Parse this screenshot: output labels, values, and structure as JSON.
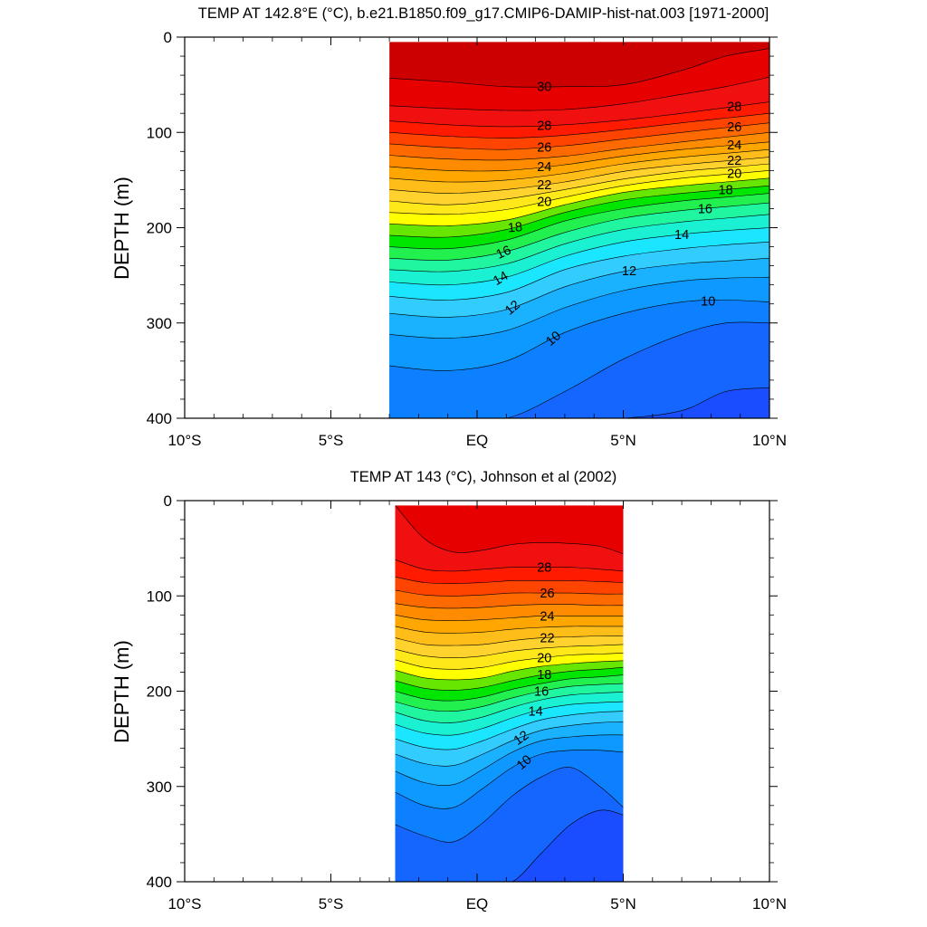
{
  "chart_data": [
    {
      "type": "heatmap",
      "subtype": "filled-contour",
      "title": "TEMP AT 142.8°E (°C), b.e21.B1850.f09_g17.CMIP6-DAMIP-hist-nat.003 [1971-2000]",
      "ylabel": "DEPTH (m)",
      "xlabel": "",
      "xlim": [
        -10,
        10
      ],
      "ylim": [
        400,
        0
      ],
      "x_ticks": [
        -10,
        -5,
        0,
        5,
        10
      ],
      "x_tick_labels": [
        "10°S",
        "5°S",
        "EQ",
        "5°N",
        "10°N"
      ],
      "y_ticks": [
        0,
        100,
        200,
        300,
        400
      ],
      "y_tick_labels": [
        "0",
        "100",
        "200",
        "300",
        "400"
      ],
      "data_extent": {
        "lat": [
          -3.0,
          10.0
        ],
        "depth": [
          5,
          400
        ]
      },
      "contour_interval": 1,
      "contour_labels": [
        "30",
        "28",
        "26",
        "24",
        "22",
        "20",
        "18",
        "16",
        "14",
        "12",
        "10",
        "28",
        "26",
        "24",
        "22",
        "20",
        "18",
        "16",
        "14",
        "12",
        "10"
      ],
      "isotherm_depths": {
        "lat": [
          -3,
          -1,
          1,
          3,
          5,
          7,
          8.5,
          10
        ],
        "series": [
          {
            "t": 30,
            "depth": [
              43,
              47,
              52,
              52,
              50,
              35,
              20,
              12
            ]
          },
          {
            "t": 29,
            "depth": [
              72,
              75,
              77,
              76,
              70,
              60,
              52,
              42
            ]
          },
          {
            "t": 28,
            "depth": [
              88,
              92,
              94,
              92,
              87,
              80,
              74,
              68
            ]
          },
          {
            "t": 27,
            "depth": [
              100,
              104,
              106,
              103,
              97,
              90,
              85,
              80
            ]
          },
          {
            "t": 26,
            "depth": [
              112,
              116,
              118,
              114,
              107,
              100,
              95,
              90
            ]
          },
          {
            "t": 25,
            "depth": [
              124,
              128,
              129,
              125,
              117,
              110,
              105,
              100
            ]
          },
          {
            "t": 24,
            "depth": [
              136,
              140,
              140,
              134,
              125,
              118,
              114,
              110
            ]
          },
          {
            "t": 23,
            "depth": [
              148,
              152,
              150,
              143,
              133,
              126,
              122,
              118
            ]
          },
          {
            "t": 22,
            "depth": [
              160,
              164,
              160,
              152,
              141,
              134,
              130,
              126
            ]
          },
          {
            "t": 21,
            "depth": [
              172,
              176,
              170,
              160,
              149,
              141,
              137,
              133
            ]
          },
          {
            "t": 20,
            "depth": [
              184,
              186,
              181,
              168,
              156,
              148,
              144,
              140
            ]
          },
          {
            "t": 19,
            "depth": [
              196,
              198,
              192,
              176,
              163,
              156,
              152,
              148
            ]
          },
          {
            "t": 18,
            "depth": [
              208,
              210,
              202,
              184,
              171,
              164,
              160,
              156
            ]
          },
          {
            "t": 17,
            "depth": [
              220,
              222,
              213,
              193,
              180,
              172,
              168,
              164
            ]
          },
          {
            "t": 16,
            "depth": [
              232,
              234,
              225,
              205,
              190,
              182,
              178,
              174
            ]
          },
          {
            "t": 15,
            "depth": [
              244,
              246,
              238,
              217,
              202,
              194,
              190,
              186
            ]
          },
          {
            "t": 14,
            "depth": [
              257,
              260,
              252,
              230,
              215,
              207,
              203,
              200
            ]
          },
          {
            "t": 13,
            "depth": [
              272,
              276,
              268,
              244,
              230,
              222,
              218,
              215
            ]
          },
          {
            "t": 12,
            "depth": [
              290,
              294,
              286,
              262,
              246,
              238,
              235,
              232
            ]
          },
          {
            "t": 11,
            "depth": [
              312,
              316,
              308,
              284,
              266,
              256,
              253,
              252
            ]
          },
          {
            "t": 10,
            "depth": [
              345,
              350,
              340,
              310,
              290,
              278,
              276,
              278
            ]
          },
          {
            "t": 9,
            "depth": [
              410,
              410,
              405,
              372,
              338,
              312,
              300,
              300
            ]
          },
          {
            "t": 8,
            "depth": [
              410,
              410,
              410,
              410,
              408,
              392,
              372,
              368
            ]
          }
        ]
      }
    },
    {
      "type": "heatmap",
      "subtype": "filled-contour",
      "title": "TEMP AT 143 (°C), Johnson et al (2002)",
      "ylabel": "DEPTH (m)",
      "xlabel": "",
      "xlim": [
        -10,
        10
      ],
      "ylim": [
        400,
        0
      ],
      "x_ticks": [
        -10,
        -5,
        0,
        5,
        10
      ],
      "x_tick_labels": [
        "10°S",
        "5°S",
        "EQ",
        "5°N",
        "10°N"
      ],
      "y_ticks": [
        0,
        100,
        200,
        300,
        400
      ],
      "y_tick_labels": [
        "0",
        "100",
        "200",
        "300",
        "400"
      ],
      "data_extent": {
        "lat": [
          -2.8,
          5.0
        ],
        "depth": [
          5,
          400
        ]
      },
      "contour_interval": 1,
      "contour_labels": [
        "28",
        "26",
        "24",
        "22",
        "20",
        "18",
        "16",
        "14",
        "12",
        "10"
      ],
      "isotherm_depths": {
        "lat": [
          -2.8,
          -1.8,
          -0.8,
          0.2,
          1.2,
          2.2,
          3.2,
          4.2,
          5.0
        ],
        "series": [
          {
            "t": 29,
            "depth": [
              0,
              40,
              54,
              52,
              46,
              44,
              45,
              48,
              56
            ]
          },
          {
            "t": 28,
            "depth": [
              62,
              72,
              74,
              72,
              70,
              70,
              70,
              72,
              74
            ]
          },
          {
            "t": 27,
            "depth": [
              80,
              86,
              87,
              86,
              84,
              84,
              84,
              85,
              86
            ]
          },
          {
            "t": 26,
            "depth": [
              94,
              99,
              100,
              99,
              97,
              97,
              97,
              98,
              98
            ]
          },
          {
            "t": 25,
            "depth": [
              108,
              112,
              113,
              112,
              110,
              109,
              109,
              110,
              110
            ]
          },
          {
            "t": 24,
            "depth": [
              120,
              125,
              126,
              125,
              123,
              121,
              121,
              121,
              121
            ]
          },
          {
            "t": 23,
            "depth": [
              132,
              138,
              139,
              138,
              135,
              133,
              132,
              132,
              132
            ]
          },
          {
            "t": 22,
            "depth": [
              144,
              151,
              152,
              151,
              147,
              144,
              143,
              142,
              142
            ]
          },
          {
            "t": 21,
            "depth": [
              156,
              163,
              165,
              163,
              158,
              155,
              153,
              152,
              151
            ]
          },
          {
            "t": 20,
            "depth": [
              167,
              175,
              177,
              175,
              169,
              165,
              162,
              161,
              160
            ]
          },
          {
            "t": 19,
            "depth": [
              178,
              186,
              188,
              186,
              179,
              174,
              171,
              169,
              168
            ]
          },
          {
            "t": 18,
            "depth": [
              189,
              197,
              199,
              196,
              189,
              183,
              179,
              177,
              175
            ]
          },
          {
            "t": 17,
            "depth": [
              200,
              208,
              210,
              206,
              198,
              192,
              187,
              185,
              183
            ]
          },
          {
            "t": 16,
            "depth": [
              211,
              219,
              221,
              216,
              207,
              200,
              195,
              193,
              192
            ]
          },
          {
            "t": 15,
            "depth": [
              222,
              231,
              233,
              227,
              217,
              209,
              204,
              202,
              201
            ]
          },
          {
            "t": 14,
            "depth": [
              235,
              244,
              246,
              239,
              228,
              219,
              214,
              212,
              211
            ]
          },
          {
            "t": 13,
            "depth": [
              250,
              259,
              261,
              252,
              240,
              230,
              225,
              222,
              221
            ]
          },
          {
            "t": 12,
            "depth": [
              266,
              276,
              278,
              266,
              252,
              241,
              236,
              233,
              232
            ]
          },
          {
            "t": 11,
            "depth": [
              284,
              296,
              298,
              282,
              264,
              252,
              248,
              246,
              246
            ]
          },
          {
            "t": 10,
            "depth": [
              306,
              320,
              322,
              302,
              280,
              266,
              262,
              262,
              264
            ]
          },
          {
            "t": 9,
            "depth": [
              340,
              352,
              358,
              338,
              310,
              290,
              280,
              300,
              322
            ]
          },
          {
            "t": 8,
            "depth": [
              410,
              410,
              410,
              410,
              400,
              370,
              340,
              325,
              330
            ]
          }
        ]
      }
    }
  ]
}
